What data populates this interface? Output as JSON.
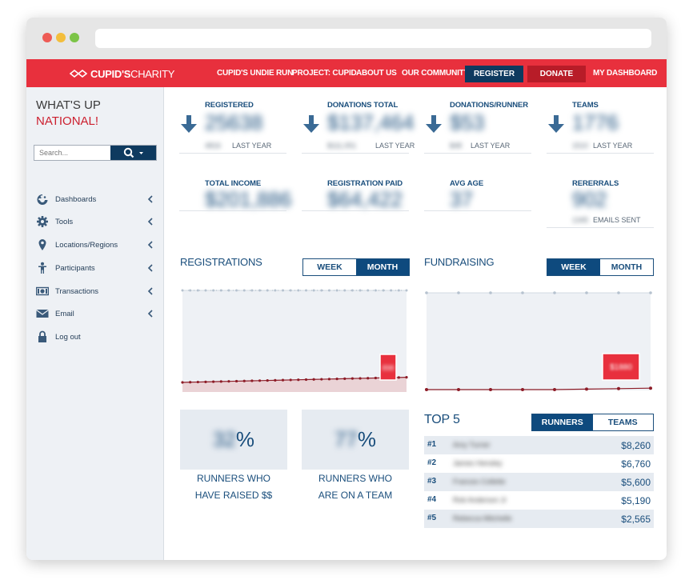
{
  "nav": {
    "logo_bold": "CUPID'S",
    "logo_thin": "CHARITY",
    "links": [
      "CUPID'S UNDIE RUN",
      "PROJECT: CUPID",
      "ABOUT US",
      "OUR COMMUNITY"
    ],
    "register": "REGISTER",
    "donate": "DONATE",
    "dashboard": "MY DASHBOARD",
    "accent": "#e8303d"
  },
  "sidebar": {
    "greeting_line1": "WHAT'S UP",
    "greeting_line2": "NATIONAL!",
    "search_placeholder": "Search...",
    "items": [
      {
        "label": "Dashboards",
        "icon": "palette-icon"
      },
      {
        "label": "Tools",
        "icon": "gear-icon"
      },
      {
        "label": "Locations/Regions",
        "icon": "map-pin-icon"
      },
      {
        "label": "Participants",
        "icon": "person-icon"
      },
      {
        "label": "Transactions",
        "icon": "money-icon"
      },
      {
        "label": "Email",
        "icon": "envelope-icon"
      },
      {
        "label": "Log out",
        "icon": "lock-icon"
      }
    ]
  },
  "stats": {
    "registered": {
      "label": "REGISTERED",
      "value": "25638",
      "sub_value": "4816",
      "sub_label": "LAST YEAR"
    },
    "donations_total": {
      "label": "DONATIONS TOTAL",
      "value": "$137,464",
      "sub_value": "$111,051",
      "sub_label": "LAST YEAR"
    },
    "donations_runner": {
      "label": "DONATIONS/RUNNER",
      "value": "$53",
      "sub_value": "$48",
      "sub_label": "LAST YEAR"
    },
    "teams": {
      "label": "TEAMS",
      "value": "1776",
      "sub_value": "1510",
      "sub_label": "LAST YEAR"
    },
    "total_income": {
      "label": "TOTAL INCOME",
      "value": "$201,886"
    },
    "registration_paid": {
      "label": "REGISTRATION PAID",
      "value": "$64,422"
    },
    "avg_age": {
      "label": "AVG AGE",
      "value": "37"
    },
    "referrals": {
      "label": "RERERRALS",
      "value": "902",
      "sub_value": "1345",
      "sub_label": "EMAILS SENT"
    }
  },
  "registrations": {
    "title": "REGISTRATIONS",
    "week": "WEEK",
    "month": "MONTH",
    "active": "month",
    "tooltip": "898"
  },
  "fundraising": {
    "title": "FUNDRAISING",
    "week": "WEEK",
    "month": "MONTH",
    "active": "week",
    "tooltip": "$1880"
  },
  "percent_runners_raised": {
    "value": "32",
    "suffix": "%",
    "caption1": "RUNNERS WHO",
    "caption2": "HAVE RAISED $$"
  },
  "percent_runners_team": {
    "value": "77",
    "suffix": "%",
    "caption1": "RUNNERS WHO",
    "caption2": "ARE ON A TEAM"
  },
  "top5": {
    "title": "TOP 5",
    "runners": "RUNNERS",
    "teams": "TEAMS",
    "rows": [
      {
        "rank": "#1",
        "name": "Amy Turner",
        "amount": "$8,260"
      },
      {
        "rank": "#2",
        "name": "James Hensley",
        "amount": "$6,760"
      },
      {
        "rank": "#3",
        "name": "Frances Collette",
        "amount": "$5,600"
      },
      {
        "rank": "#4",
        "name": "Rob Anderson Jr",
        "amount": "$5,190"
      },
      {
        "rank": "#5",
        "name": "Rebecca Mitchelle",
        "amount": "$2,565"
      }
    ]
  }
}
